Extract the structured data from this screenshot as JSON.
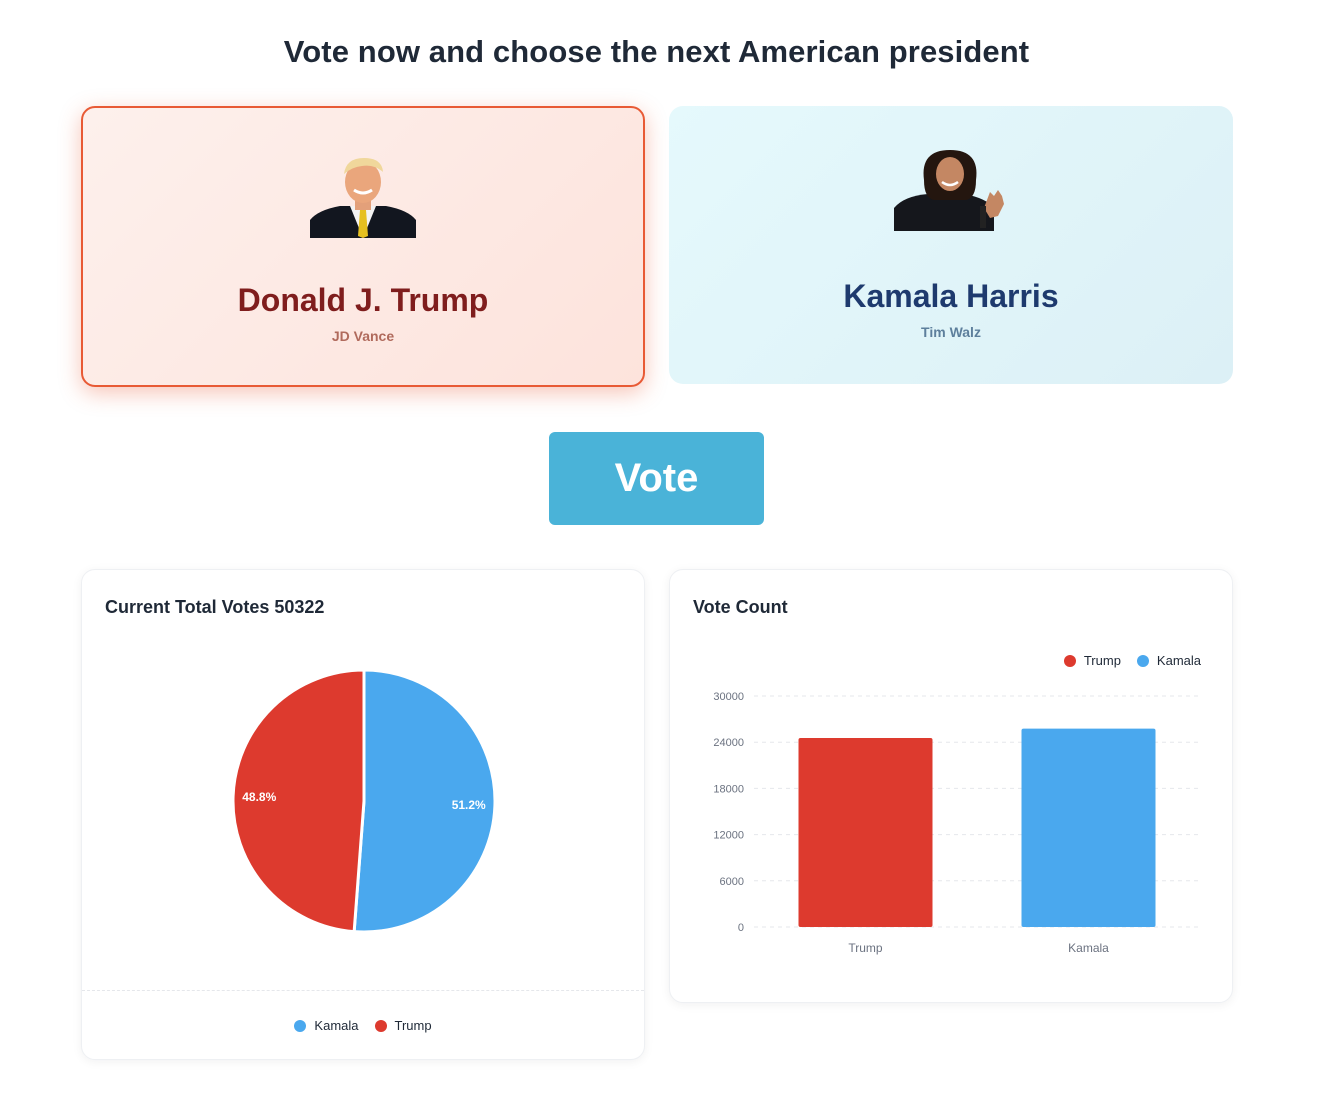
{
  "page": {
    "title": "Vote now and choose the next American president"
  },
  "candidates": {
    "trump": {
      "name": "Donald J. Trump",
      "running_mate": "JD Vance",
      "selected": true
    },
    "harris": {
      "name": "Kamala Harris",
      "running_mate": "Tim Walz",
      "selected": false
    }
  },
  "vote_button": {
    "label": "Vote"
  },
  "pie_card": {
    "title": "Current Total Votes 50322",
    "legend": [
      {
        "label": "Kamala",
        "color": "#4aa8ee"
      },
      {
        "label": "Trump",
        "color": "#dd3a2e"
      }
    ]
  },
  "bar_card": {
    "title": "Vote Count",
    "legend": [
      {
        "label": "Trump",
        "color": "#dd3a2e"
      },
      {
        "label": "Kamala",
        "color": "#4aa8ee"
      }
    ]
  },
  "chart_data": [
    {
      "type": "pie",
      "title": "Current Total Votes 50322",
      "slices": [
        {
          "label": "Kamala",
          "percent": 51.2,
          "percent_label": "51.2%",
          "color": "#4aa8ee"
        },
        {
          "label": "Trump",
          "percent": 48.8,
          "percent_label": "48.8%",
          "color": "#dd3a2e"
        }
      ],
      "legend_position": "bottom"
    },
    {
      "type": "bar",
      "title": "Vote Count",
      "categories": [
        "Trump",
        "Kamala"
      ],
      "values": [
        24550,
        25770
      ],
      "colors": [
        "#dd3a2e",
        "#4aa8ee"
      ],
      "ylim": [
        0,
        30000
      ],
      "yticks": [
        0,
        6000,
        12000,
        18000,
        24000,
        30000
      ],
      "grid": true,
      "legend_position": "top-right"
    }
  ]
}
